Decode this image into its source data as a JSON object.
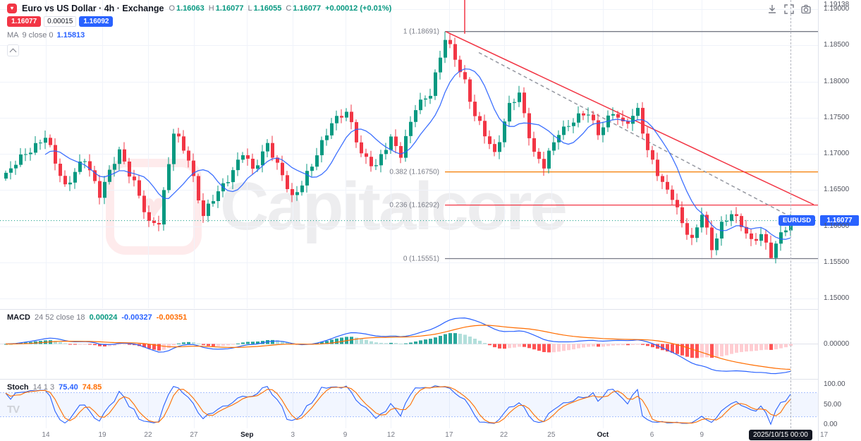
{
  "header": {
    "title": "Euro vs US Dollar · 4h · Exchange",
    "ohlc": {
      "o_label": "O",
      "o": "1.16063",
      "h_label": "H",
      "h": "1.16077",
      "l_label": "L",
      "l": "1.16055",
      "c_label": "C",
      "c": "1.16077",
      "change": "+0.00012 (+0.01%)"
    },
    "bid": "1.16077",
    "spread": "0.00015",
    "ask": "1.16092",
    "ma": {
      "name": "MA",
      "params": "9 close 0",
      "value": "1.15813"
    }
  },
  "watermark": {
    "text": "Capitalcore"
  },
  "price_axis": {
    "top_value": "1.19138",
    "current_price": "1.16077",
    "symbol_pill": "EURUSD"
  },
  "time_axis": {
    "date_badge": "2025/10/15 00:00",
    "future_label": "17",
    "labels": [
      {
        "text": "14",
        "f": 0.056,
        "month": false
      },
      {
        "text": "19",
        "f": 0.125,
        "month": false
      },
      {
        "text": "22",
        "f": 0.181,
        "month": false
      },
      {
        "text": "27",
        "f": 0.237,
        "month": false
      },
      {
        "text": "Sep",
        "f": 0.302,
        "month": true
      },
      {
        "text": "3",
        "f": 0.358,
        "month": false
      },
      {
        "text": "9",
        "f": 0.422,
        "month": false
      },
      {
        "text": "12",
        "f": 0.478,
        "month": false
      },
      {
        "text": "17",
        "f": 0.549,
        "month": false
      },
      {
        "text": "22",
        "f": 0.616,
        "month": false
      },
      {
        "text": "25",
        "f": 0.674,
        "month": false
      },
      {
        "text": "Oct",
        "f": 0.737,
        "month": true
      },
      {
        "text": "6",
        "f": 0.797,
        "month": false
      },
      {
        "text": "9",
        "f": 0.858,
        "month": false
      }
    ]
  },
  "panes": {
    "macd": {
      "name": "MACD",
      "settings": "24 52 close 18",
      "hist_value": "0.00024",
      "macd_value": "-0.00327",
      "signal_value": "-0.00351",
      "zero_tick": "0.00000"
    },
    "stoch": {
      "name": "Stoch",
      "settings": "14 1 3",
      "k_value": "75.40",
      "d_value": "74.85",
      "ticks": [
        "100.00",
        "50.00",
        "0.00"
      ]
    }
  },
  "chart_data": [
    {
      "type": "candlestick",
      "symbol": "EURUSD",
      "title": "Euro vs US Dollar",
      "interval": "4h",
      "exchange": "Exchange",
      "last_close": 1.16077,
      "last_ohlc": {
        "o": 1.16063,
        "h": 1.16077,
        "l": 1.16055,
        "c": 1.16077,
        "change": 0.00012,
        "change_pct": 0.01
      },
      "candle_count": 160,
      "up_color": "#089981",
      "down_color": "#f23645",
      "ma": {
        "period": 9,
        "source": "close",
        "offset": 0,
        "value": 1.15813,
        "color": "#2962ff"
      },
      "price_ticks": [
        1.19,
        1.185,
        1.18,
        1.175,
        1.17,
        1.165,
        1.16,
        1.155,
        1.15
      ],
      "ylim": [
        1.149,
        1.19138
      ],
      "fib_anchor_index": 89,
      "fib_levels": [
        {
          "label": "1 (1.18691)",
          "price": 1.18691,
          "color": "#787b86"
        },
        {
          "label": "0.382 (1.16750)",
          "price": 1.1675,
          "color": "#f57c00"
        },
        {
          "label": "0.236 (1.16292)",
          "price": 1.16292,
          "color": "#f23645"
        },
        {
          "label": "0 (1.15551)",
          "price": 1.15551,
          "color": "#787b86"
        }
      ],
      "trendlines": [
        {
          "name": "descending-resistance",
          "color": "#f23645",
          "style": "solid",
          "x1f": 0.545,
          "p1": 1.18691,
          "x2f": 0.995,
          "p2": 1.16298
        },
        {
          "name": "descending-channel",
          "color": "#9598a1",
          "style": "dashed",
          "x1f": 0.585,
          "p1": 1.184,
          "x2f": 0.975,
          "p2": 1.1608
        },
        {
          "name": "vertical-marker",
          "color": "#f23645",
          "style": "solid",
          "x1f": 0.568,
          "p1": 1.19138,
          "x2f": 0.568,
          "p2": 1.1866
        }
      ],
      "close_keypoints": [
        [
          0,
          1.167
        ],
        [
          4,
          1.1702
        ],
        [
          8,
          1.1722
        ],
        [
          12,
          1.1656
        ],
        [
          16,
          1.1692
        ],
        [
          19,
          1.1646
        ],
        [
          23,
          1.1702
        ],
        [
          26,
          1.1662
        ],
        [
          29,
          1.1601
        ],
        [
          31,
          1.1607
        ],
        [
          34,
          1.173
        ],
        [
          37,
          1.1692
        ],
        [
          40,
          1.1616
        ],
        [
          44,
          1.1656
        ],
        [
          48,
          1.1701
        ],
        [
          50,
          1.1676
        ],
        [
          53,
          1.1716
        ],
        [
          55,
          1.1682
        ],
        [
          58,
          1.164
        ],
        [
          62,
          1.1682
        ],
        [
          66,
          1.1746
        ],
        [
          69,
          1.1756
        ],
        [
          72,
          1.1702
        ],
        [
          75,
          1.1681
        ],
        [
          78,
          1.1722
        ],
        [
          80,
          1.1701
        ],
        [
          83,
          1.1762
        ],
        [
          86,
          1.1786
        ],
        [
          89,
          1.1858
        ],
        [
          91,
          1.1832
        ],
        [
          93,
          1.1801
        ],
        [
          95,
          1.1752
        ],
        [
          97,
          1.1726
        ],
        [
          99,
          1.1701
        ],
        [
          102,
          1.1766
        ],
        [
          104,
          1.1781
        ],
        [
          107,
          1.1702
        ],
        [
          109,
          1.1682
        ],
        [
          112,
          1.1731
        ],
        [
          115,
          1.1746
        ],
        [
          118,
          1.1756
        ],
        [
          120,
          1.1731
        ],
        [
          123,
          1.1756
        ],
        [
          125,
          1.1741
        ],
        [
          128,
          1.1761
        ],
        [
          130,
          1.1701
        ],
        [
          133,
          1.1661
        ],
        [
          135,
          1.1641
        ],
        [
          137,
          1.1601
        ],
        [
          139,
          1.1581
        ],
        [
          141,
          1.1621
        ],
        [
          143,
          1.1566
        ],
        [
          145,
          1.1601
        ],
        [
          147,
          1.1621
        ],
        [
          149,
          1.1601
        ],
        [
          151,
          1.1576
        ],
        [
          153,
          1.1591
        ],
        [
          155,
          1.1561
        ],
        [
          157,
          1.1586
        ],
        [
          159,
          1.16077
        ]
      ],
      "wick_overrides": [
        {
          "index": 89,
          "high": 1.18691
        },
        {
          "index": 143,
          "low": 1.1556
        },
        {
          "index": 155,
          "low": 1.15551
        }
      ]
    },
    {
      "type": "line",
      "name": "MACD",
      "params": {
        "fast": 24,
        "slow": 52,
        "source": "close",
        "signal": 18
      },
      "values": {
        "histogram": 0.00024,
        "macd": -0.00327,
        "signal": -0.00351
      },
      "zero_label": "0.00000",
      "colors": {
        "macd": "#2962ff",
        "signal": "#ff6d00",
        "hist_up": "#26a69a",
        "hist_up_fade": "#b2dfdb",
        "hist_down": "#ff5252",
        "hist_down_fade": "#ffcdd2"
      }
    },
    {
      "type": "line",
      "name": "Stoch",
      "params": {
        "k": 14,
        "smooth": 1,
        "d": 3
      },
      "values": {
        "k": 75.4,
        "d": 74.85
      },
      "bands": [
        80,
        20
      ],
      "ylim": [
        0,
        100
      ],
      "colors": {
        "k": "#2962ff",
        "d": "#ff6d00",
        "band": "#2962ff"
      }
    }
  ]
}
